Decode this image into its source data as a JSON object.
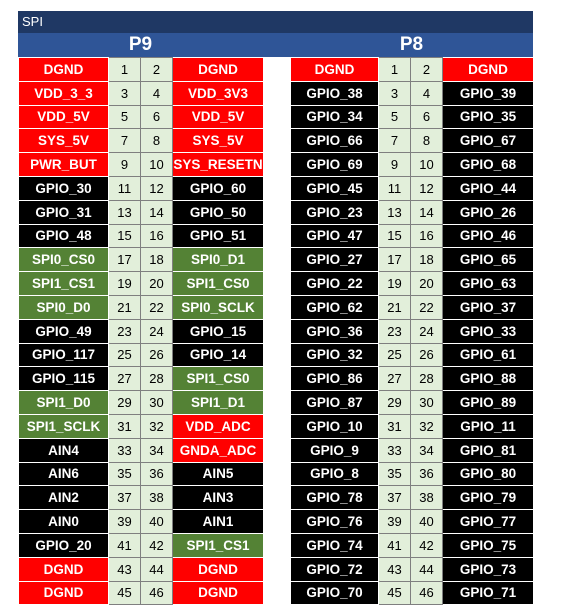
{
  "title": "SPI",
  "colors": {
    "red": "#FF0000",
    "black": "#000000",
    "green": "#548235",
    "pin_bg": "#E2EFDA",
    "title_bg": "#1F3864",
    "header_bg": "#2F5597"
  },
  "headers": [
    {
      "name": "P9",
      "rows": [
        {
          "left": "DGND",
          "lc": "red",
          "a": "1",
          "b": "2",
          "right": "DGND",
          "rc": "red"
        },
        {
          "left": "VDD_3_3",
          "lc": "red",
          "a": "3",
          "b": "4",
          "right": "VDD_3V3",
          "rc": "red"
        },
        {
          "left": "VDD_5V",
          "lc": "red",
          "a": "5",
          "b": "6",
          "right": "VDD_5V",
          "rc": "red"
        },
        {
          "left": "SYS_5V",
          "lc": "red",
          "a": "7",
          "b": "8",
          "right": "SYS_5V",
          "rc": "red"
        },
        {
          "left": "PWR_BUT",
          "lc": "red",
          "a": "9",
          "b": "10",
          "right": "SYS_RESETN",
          "rc": "red"
        },
        {
          "left": "GPIO_30",
          "lc": "black",
          "a": "11",
          "b": "12",
          "right": "GPIO_60",
          "rc": "black"
        },
        {
          "left": "GPIO_31",
          "lc": "black",
          "a": "13",
          "b": "14",
          "right": "GPIO_50",
          "rc": "black"
        },
        {
          "left": "GPIO_48",
          "lc": "black",
          "a": "15",
          "b": "16",
          "right": "GPIO_51",
          "rc": "black"
        },
        {
          "left": "SPI0_CS0",
          "lc": "green",
          "a": "17",
          "b": "18",
          "right": "SPI0_D1",
          "rc": "green"
        },
        {
          "left": "SPI1_CS1",
          "lc": "green",
          "a": "19",
          "b": "20",
          "right": "SPI1_CS0",
          "rc": "green"
        },
        {
          "left": "SPI0_D0",
          "lc": "green",
          "a": "21",
          "b": "22",
          "right": "SPI0_SCLK",
          "rc": "green"
        },
        {
          "left": "GPIO_49",
          "lc": "black",
          "a": "23",
          "b": "24",
          "right": "GPIO_15",
          "rc": "black"
        },
        {
          "left": "GPIO_117",
          "lc": "black",
          "a": "25",
          "b": "26",
          "right": "GPIO_14",
          "rc": "black"
        },
        {
          "left": "GPIO_115",
          "lc": "black",
          "a": "27",
          "b": "28",
          "right": "SPI1_CS0",
          "rc": "green"
        },
        {
          "left": "SPI1_D0",
          "lc": "green",
          "a": "29",
          "b": "30",
          "right": "SPI1_D1",
          "rc": "green"
        },
        {
          "left": "SPI1_SCLK",
          "lc": "green",
          "a": "31",
          "b": "32",
          "right": "VDD_ADC",
          "rc": "red"
        },
        {
          "left": "AIN4",
          "lc": "black",
          "a": "33",
          "b": "34",
          "right": "GNDA_ADC",
          "rc": "red"
        },
        {
          "left": "AIN6",
          "lc": "black",
          "a": "35",
          "b": "36",
          "right": "AIN5",
          "rc": "black"
        },
        {
          "left": "AIN2",
          "lc": "black",
          "a": "37",
          "b": "38",
          "right": "AIN3",
          "rc": "black"
        },
        {
          "left": "AIN0",
          "lc": "black",
          "a": "39",
          "b": "40",
          "right": "AIN1",
          "rc": "black"
        },
        {
          "left": "GPIO_20",
          "lc": "black",
          "a": "41",
          "b": "42",
          "right": "SPI1_CS1",
          "rc": "green"
        },
        {
          "left": "DGND",
          "lc": "red",
          "a": "43",
          "b": "44",
          "right": "DGND",
          "rc": "red"
        },
        {
          "left": "DGND",
          "lc": "red",
          "a": "45",
          "b": "46",
          "right": "DGND",
          "rc": "red"
        }
      ]
    },
    {
      "name": "P8",
      "rows": [
        {
          "left": "DGND",
          "lc": "red",
          "a": "1",
          "b": "2",
          "right": "DGND",
          "rc": "red"
        },
        {
          "left": "GPIO_38",
          "lc": "black",
          "a": "3",
          "b": "4",
          "right": "GPIO_39",
          "rc": "black"
        },
        {
          "left": "GPIO_34",
          "lc": "black",
          "a": "5",
          "b": "6",
          "right": "GPIO_35",
          "rc": "black"
        },
        {
          "left": "GPIO_66",
          "lc": "black",
          "a": "7",
          "b": "8",
          "right": "GPIO_67",
          "rc": "black"
        },
        {
          "left": "GPIO_69",
          "lc": "black",
          "a": "9",
          "b": "10",
          "right": "GPIO_68",
          "rc": "black"
        },
        {
          "left": "GPIO_45",
          "lc": "black",
          "a": "11",
          "b": "12",
          "right": "GPIO_44",
          "rc": "black"
        },
        {
          "left": "GPIO_23",
          "lc": "black",
          "a": "13",
          "b": "14",
          "right": "GPIO_26",
          "rc": "black"
        },
        {
          "left": "GPIO_47",
          "lc": "black",
          "a": "15",
          "b": "16",
          "right": "GPIO_46",
          "rc": "black"
        },
        {
          "left": "GPIO_27",
          "lc": "black",
          "a": "17",
          "b": "18",
          "right": "GPIO_65",
          "rc": "black"
        },
        {
          "left": "GPIO_22",
          "lc": "black",
          "a": "19",
          "b": "20",
          "right": "GPIO_63",
          "rc": "black"
        },
        {
          "left": "GPIO_62",
          "lc": "black",
          "a": "21",
          "b": "22",
          "right": "GPIO_37",
          "rc": "black"
        },
        {
          "left": "GPIO_36",
          "lc": "black",
          "a": "23",
          "b": "24",
          "right": "GPIO_33",
          "rc": "black"
        },
        {
          "left": "GPIO_32",
          "lc": "black",
          "a": "25",
          "b": "26",
          "right": "GPIO_61",
          "rc": "black"
        },
        {
          "left": "GPIO_86",
          "lc": "black",
          "a": "27",
          "b": "28",
          "right": "GPIO_88",
          "rc": "black"
        },
        {
          "left": "GPIO_87",
          "lc": "black",
          "a": "29",
          "b": "30",
          "right": "GPIO_89",
          "rc": "black"
        },
        {
          "left": "GPIO_10",
          "lc": "black",
          "a": "31",
          "b": "32",
          "right": "GPIO_11",
          "rc": "black"
        },
        {
          "left": "GPIO_9",
          "lc": "black",
          "a": "33",
          "b": "34",
          "right": "GPIO_81",
          "rc": "black"
        },
        {
          "left": "GPIO_8",
          "lc": "black",
          "a": "35",
          "b": "36",
          "right": "GPIO_80",
          "rc": "black"
        },
        {
          "left": "GPIO_78",
          "lc": "black",
          "a": "37",
          "b": "38",
          "right": "GPIO_79",
          "rc": "black"
        },
        {
          "left": "GPIO_76",
          "lc": "black",
          "a": "39",
          "b": "40",
          "right": "GPIO_77",
          "rc": "black"
        },
        {
          "left": "GPIO_74",
          "lc": "black",
          "a": "41",
          "b": "42",
          "right": "GPIO_75",
          "rc": "black"
        },
        {
          "left": "GPIO_72",
          "lc": "black",
          "a": "43",
          "b": "44",
          "right": "GPIO_73",
          "rc": "black"
        },
        {
          "left": "GPIO_70",
          "lc": "black",
          "a": "45",
          "b": "46",
          "right": "GPIO_71",
          "rc": "black"
        }
      ]
    }
  ]
}
